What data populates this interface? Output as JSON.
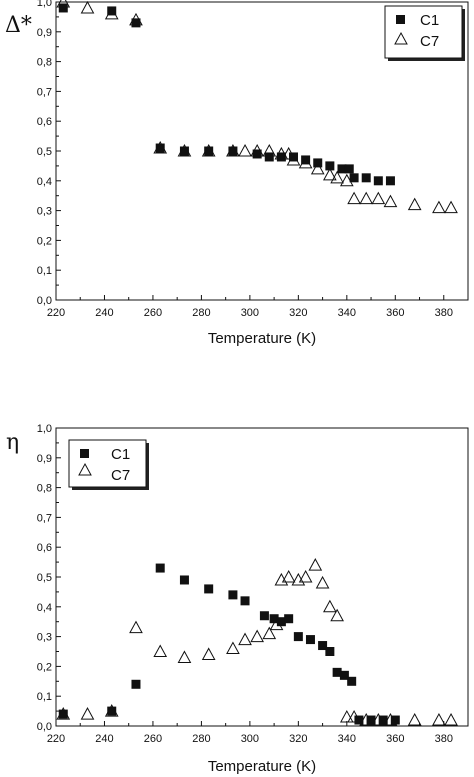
{
  "chart_data": [
    {
      "type": "scatter",
      "title": "",
      "ylabel": "Δ*",
      "xlabel": "Temperature (K)",
      "xlim": [
        220,
        390
      ],
      "ylim": [
        0.0,
        1.0
      ],
      "xticks": [
        "220",
        "240",
        "260",
        "280",
        "300",
        "320",
        "340",
        "360",
        "380"
      ],
      "yticks": [
        "0,0",
        "0,1",
        "0,2",
        "0,3",
        "0,4",
        "0,5",
        "0,6",
        "0,7",
        "0,8",
        "0,9",
        "1,0"
      ],
      "legend_position": "top-right",
      "series": [
        {
          "name": "C1",
          "marker": "filled-square",
          "points": [
            [
              223,
              0.98
            ],
            [
              243,
              0.97
            ],
            [
              253,
              0.93
            ],
            [
              263,
              0.51
            ],
            [
              273,
              0.5
            ],
            [
              283,
              0.5
            ],
            [
              293,
              0.5
            ],
            [
              303,
              0.49
            ],
            [
              308,
              0.48
            ],
            [
              313,
              0.48
            ],
            [
              318,
              0.48
            ],
            [
              323,
              0.47
            ],
            [
              328,
              0.46
            ],
            [
              333,
              0.45
            ],
            [
              338,
              0.44
            ],
            [
              341,
              0.44
            ],
            [
              343,
              0.41
            ],
            [
              348,
              0.41
            ],
            [
              353,
              0.4
            ],
            [
              358,
              0.4
            ]
          ]
        },
        {
          "name": "C7",
          "marker": "open-triangle",
          "points": [
            [
              223,
              1.0
            ],
            [
              233,
              0.98
            ],
            [
              243,
              0.96
            ],
            [
              253,
              0.94
            ],
            [
              263,
              0.51
            ],
            [
              273,
              0.5
            ],
            [
              283,
              0.5
            ],
            [
              293,
              0.5
            ],
            [
              298,
              0.5
            ],
            [
              303,
              0.5
            ],
            [
              308,
              0.5
            ],
            [
              313,
              0.49
            ],
            [
              316,
              0.49
            ],
            [
              318,
              0.47
            ],
            [
              323,
              0.46
            ],
            [
              328,
              0.44
            ],
            [
              333,
              0.42
            ],
            [
              336,
              0.41
            ],
            [
              340,
              0.4
            ],
            [
              343,
              0.34
            ],
            [
              348,
              0.34
            ],
            [
              353,
              0.34
            ],
            [
              358,
              0.33
            ],
            [
              368,
              0.32
            ],
            [
              378,
              0.31
            ],
            [
              383,
              0.31
            ]
          ]
        }
      ]
    },
    {
      "type": "scatter",
      "title": "",
      "ylabel": "η",
      "xlabel": "Temperature (K)",
      "xlim": [
        220,
        390
      ],
      "ylim": [
        0.0,
        1.0
      ],
      "xticks": [
        "220",
        "240",
        "260",
        "280",
        "300",
        "320",
        "340",
        "360",
        "380"
      ],
      "yticks": [
        "0,0",
        "0,1",
        "0,2",
        "0,3",
        "0,4",
        "0,5",
        "0,6",
        "0,7",
        "0,8",
        "0,9",
        "1,0"
      ],
      "legend_position": "top-left",
      "series": [
        {
          "name": "C1",
          "marker": "filled-square",
          "points": [
            [
              223,
              0.04
            ],
            [
              243,
              0.05
            ],
            [
              253,
              0.14
            ],
            [
              263,
              0.53
            ],
            [
              273,
              0.49
            ],
            [
              283,
              0.46
            ],
            [
              293,
              0.44
            ],
            [
              298,
              0.42
            ],
            [
              306,
              0.37
            ],
            [
              310,
              0.36
            ],
            [
              313,
              0.35
            ],
            [
              316,
              0.36
            ],
            [
              320,
              0.3
            ],
            [
              325,
              0.29
            ],
            [
              330,
              0.27
            ],
            [
              333,
              0.25
            ],
            [
              336,
              0.18
            ],
            [
              339,
              0.17
            ],
            [
              342,
              0.15
            ],
            [
              345,
              0.02
            ],
            [
              350,
              0.02
            ],
            [
              355,
              0.02
            ],
            [
              360,
              0.02
            ]
          ]
        },
        {
          "name": "C7",
          "marker": "open-triangle",
          "points": [
            [
              223,
              0.04
            ],
            [
              233,
              0.04
            ],
            [
              243,
              0.05
            ],
            [
              253,
              0.33
            ],
            [
              263,
              0.25
            ],
            [
              273,
              0.23
            ],
            [
              283,
              0.24
            ],
            [
              293,
              0.26
            ],
            [
              298,
              0.29
            ],
            [
              303,
              0.3
            ],
            [
              308,
              0.31
            ],
            [
              311,
              0.34
            ],
            [
              313,
              0.49
            ],
            [
              316,
              0.5
            ],
            [
              320,
              0.49
            ],
            [
              323,
              0.5
            ],
            [
              327,
              0.54
            ],
            [
              330,
              0.48
            ],
            [
              333,
              0.4
            ],
            [
              336,
              0.37
            ],
            [
              340,
              0.03
            ],
            [
              343,
              0.03
            ],
            [
              348,
              0.02
            ],
            [
              353,
              0.02
            ],
            [
              358,
              0.02
            ],
            [
              368,
              0.02
            ],
            [
              378,
              0.02
            ],
            [
              383,
              0.02
            ]
          ]
        }
      ]
    }
  ]
}
